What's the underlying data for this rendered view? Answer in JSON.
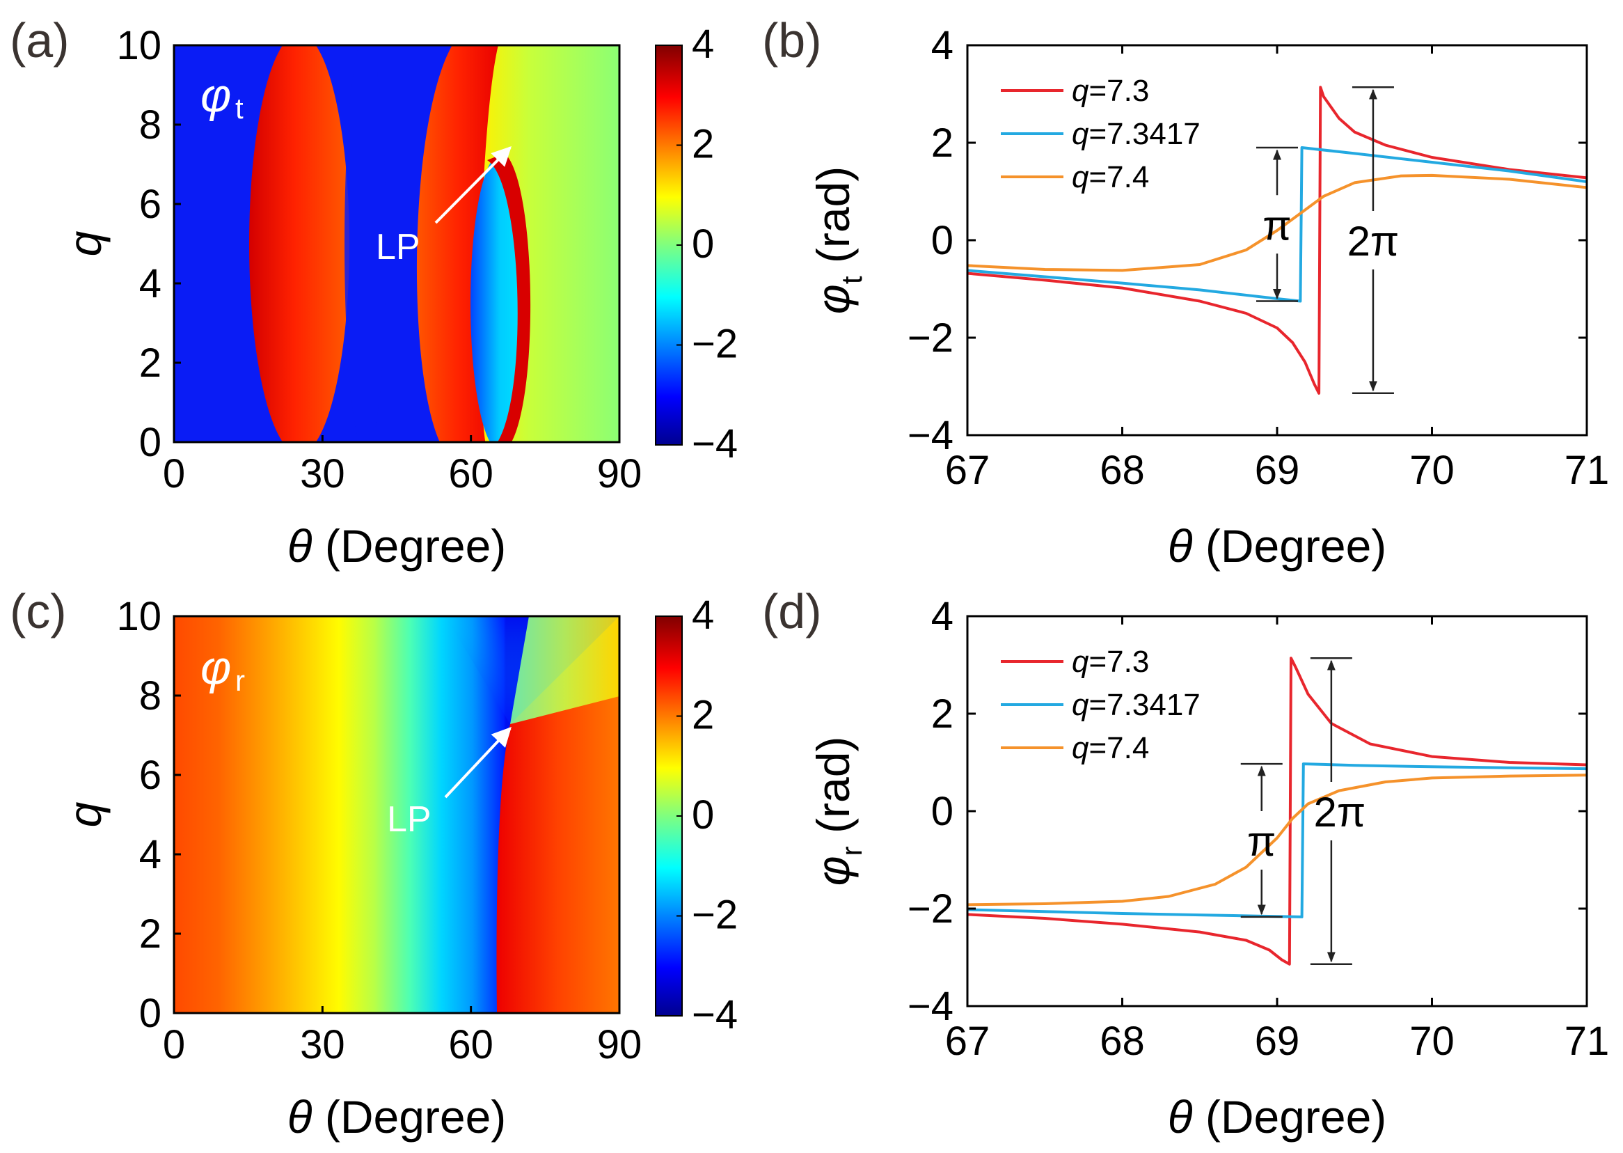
{
  "figure": {
    "panels": {
      "a": "(a)",
      "b": "(b)",
      "c": "(c)",
      "d": "(d)"
    }
  },
  "chart_data": [
    {
      "panel": "a",
      "type": "heatmap",
      "title_symbol": "φ",
      "title_subscript": "t",
      "xlabel_symbol": "θ",
      "xlabel_text": "(Degree)",
      "ylabel": "q",
      "xlim": [
        0,
        90
      ],
      "ylim": [
        0,
        10
      ],
      "xticks": [
        0,
        30,
        60,
        90
      ],
      "yticks": [
        0,
        2,
        4,
        6,
        8,
        10
      ],
      "colorbar": {
        "range": [
          -4,
          4
        ],
        "ticks": [
          4,
          2,
          0,
          -2,
          -4
        ],
        "tick_labels": [
          "4",
          "2",
          "0",
          "−2",
          "−4"
        ]
      },
      "annotation": {
        "text": "LP",
        "target": [
          69,
          7.34
        ]
      }
    },
    {
      "panel": "b",
      "type": "line",
      "xlabel_symbol": "θ",
      "xlabel_text": "(Degree)",
      "ylabel_symbol": "φ",
      "ylabel_subscript": "t",
      "ylabel_text": "(rad)",
      "xlim": [
        67,
        71
      ],
      "ylim": [
        -4,
        4
      ],
      "xticks": [
        67,
        68,
        69,
        70,
        71
      ],
      "yticks": [
        4,
        2,
        0,
        -2,
        -4
      ],
      "ytick_labels": [
        "4",
        "2",
        "0",
        "−2",
        "−4"
      ],
      "series": [
        {
          "name": "q",
          "label_value": "=7.3",
          "color": "#e8262d",
          "x": [
            67.0,
            67.5,
            68.0,
            68.5,
            68.8,
            69.0,
            69.1,
            69.18,
            69.24,
            69.27,
            69.28,
            69.3,
            69.4,
            69.5,
            69.7,
            70.0,
            70.5,
            71.0
          ],
          "y": [
            -0.68,
            -0.82,
            -0.98,
            -1.25,
            -1.5,
            -1.8,
            -2.1,
            -2.5,
            -2.95,
            -3.14,
            3.14,
            2.95,
            2.5,
            2.22,
            1.95,
            1.7,
            1.45,
            1.28
          ]
        },
        {
          "name": "q",
          "label_value": "=7.3417",
          "color": "#23a9e1",
          "x": [
            67.0,
            67.5,
            68.0,
            68.5,
            69.0,
            69.15,
            69.16,
            69.5,
            70.0,
            70.5,
            71.0
          ],
          "y": [
            -0.62,
            -0.75,
            -0.88,
            -1.02,
            -1.2,
            -1.25,
            1.9,
            1.78,
            1.6,
            1.42,
            1.2
          ]
        },
        {
          "name": "q",
          "label_value": "=7.4",
          "color": "#f5922b",
          "x": [
            67.0,
            67.5,
            68.0,
            68.5,
            68.8,
            69.0,
            69.15,
            69.3,
            69.5,
            69.8,
            70.0,
            70.5,
            71.0
          ],
          "y": [
            -0.52,
            -0.6,
            -0.62,
            -0.5,
            -0.2,
            0.2,
            0.55,
            0.9,
            1.18,
            1.32,
            1.33,
            1.25,
            1.08
          ]
        }
      ],
      "annotations": [
        {
          "text": "π",
          "x": 69.0,
          "y_range": [
            -1.25,
            1.9
          ]
        },
        {
          "text": "2π",
          "x": 69.62,
          "y_range": [
            -3.14,
            3.14
          ]
        }
      ]
    },
    {
      "panel": "c",
      "type": "heatmap",
      "title_symbol": "φ",
      "title_subscript": "r",
      "xlabel_symbol": "θ",
      "xlabel_text": "(Degree)",
      "ylabel": "q",
      "xlim": [
        0,
        90
      ],
      "ylim": [
        0,
        10
      ],
      "xticks": [
        0,
        30,
        60,
        90
      ],
      "yticks": [
        0,
        2,
        4,
        6,
        8,
        10
      ],
      "colorbar": {
        "range": [
          -4,
          4
        ],
        "ticks": [
          4,
          2,
          0,
          -2,
          -4
        ],
        "tick_labels": [
          "4",
          "2",
          "0",
          "−2",
          "−4"
        ]
      },
      "annotation": {
        "text": "LP",
        "target": [
          69,
          7.34
        ]
      }
    },
    {
      "panel": "d",
      "type": "line",
      "xlabel_symbol": "θ",
      "xlabel_text": "(Degree)",
      "ylabel_symbol": "φ",
      "ylabel_subscript": "r",
      "ylabel_text": "(rad)",
      "xlim": [
        67,
        71
      ],
      "ylim": [
        -4,
        4
      ],
      "xticks": [
        67,
        68,
        69,
        70,
        71
      ],
      "yticks": [
        4,
        2,
        0,
        -2,
        -4
      ],
      "ytick_labels": [
        "4",
        "2",
        "0",
        "−2",
        "−4"
      ],
      "series": [
        {
          "name": "q",
          "label_value": "=7.3",
          "color": "#e8262d",
          "x": [
            67.0,
            67.5,
            68.0,
            68.5,
            68.8,
            68.95,
            69.03,
            69.08,
            69.09,
            69.12,
            69.2,
            69.35,
            69.6,
            70.0,
            70.5,
            71.0
          ],
          "y": [
            -2.12,
            -2.2,
            -2.32,
            -2.48,
            -2.65,
            -2.85,
            -3.05,
            -3.14,
            3.14,
            2.95,
            2.4,
            1.8,
            1.38,
            1.12,
            1.0,
            0.95
          ]
        },
        {
          "name": "q",
          "label_value": "=7.3417",
          "color": "#23a9e1",
          "x": [
            67.0,
            67.5,
            68.0,
            68.5,
            69.0,
            69.16,
            69.17,
            69.5,
            70.0,
            70.5,
            71.0
          ],
          "y": [
            -2.02,
            -2.06,
            -2.1,
            -2.13,
            -2.16,
            -2.17,
            0.97,
            0.94,
            0.91,
            0.89,
            0.87
          ]
        },
        {
          "name": "q",
          "label_value": "=7.4",
          "color": "#f5922b",
          "x": [
            67.0,
            67.5,
            68.0,
            68.3,
            68.6,
            68.8,
            69.0,
            69.1,
            69.2,
            69.4,
            69.7,
            70.0,
            70.5,
            71.0
          ],
          "y": [
            -1.92,
            -1.9,
            -1.85,
            -1.75,
            -1.5,
            -1.15,
            -0.55,
            -0.15,
            0.15,
            0.42,
            0.6,
            0.68,
            0.72,
            0.74
          ]
        }
      ],
      "annotations": [
        {
          "text": "π",
          "x": 68.9,
          "y_range": [
            -2.17,
            0.97
          ]
        },
        {
          "text": "2π",
          "x": 69.35,
          "y_range": [
            -3.14,
            3.14
          ]
        }
      ]
    }
  ]
}
